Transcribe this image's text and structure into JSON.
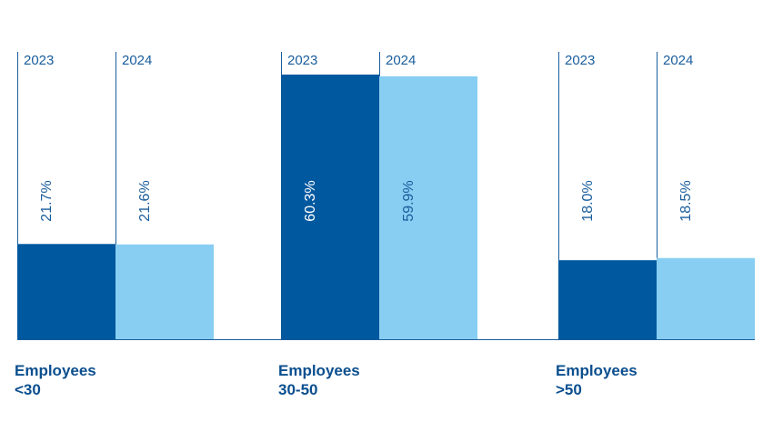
{
  "chart_data": {
    "type": "bar",
    "categories": [
      {
        "line1": "Employees",
        "line2": "<30"
      },
      {
        "line1": "Employees",
        "line2": "30-50"
      },
      {
        "line1": "Employees",
        "line2": ">50"
      }
    ],
    "series": [
      {
        "year": "2023",
        "values": [
          21.7,
          60.3,
          18.0
        ],
        "labels": [
          "21.7%",
          "60.3%",
          "18.0%"
        ],
        "color": "#00589f"
      },
      {
        "year": "2024",
        "values": [
          21.6,
          59.9,
          18.5
        ],
        "labels": [
          "21.6%",
          "59.9%",
          "18.5%"
        ],
        "color": "#87cef2"
      }
    ],
    "ylim": [
      0,
      60.3
    ],
    "grid": false,
    "colors": {
      "text": "#1a5d9c",
      "category_text": "#0b4f8f",
      "label_on_dark": "#ffffff",
      "label_on_light": "#1a5d9c",
      "axis": "#1a5d9c"
    }
  }
}
